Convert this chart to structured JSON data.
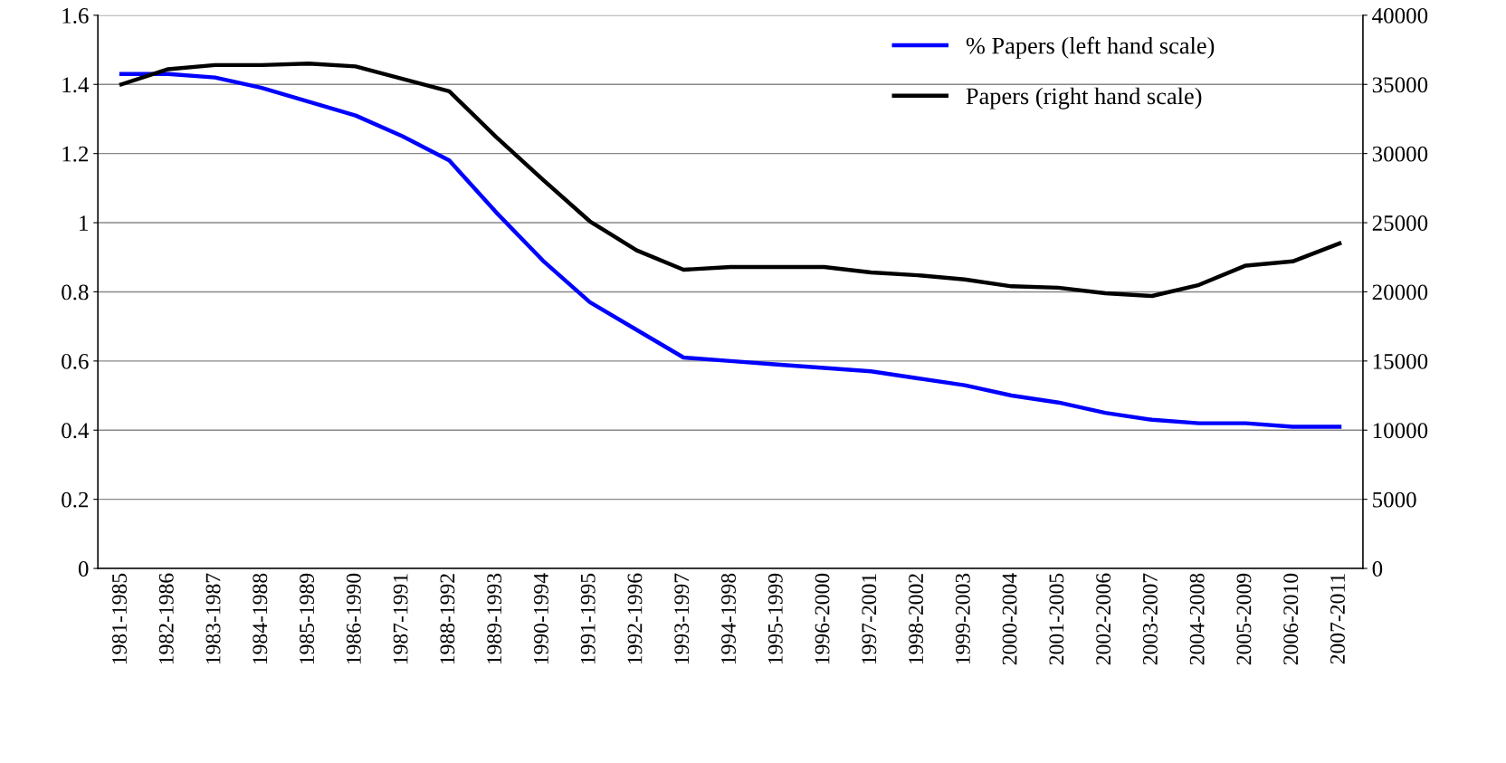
{
  "chart_data": {
    "type": "line",
    "categories": [
      "1981-1985",
      "1982-1986",
      "1983-1987",
      "1984-1988",
      "1985-1989",
      "1986-1990",
      "1987-1991",
      "1988-1992",
      "1989-1993",
      "1990-1994",
      "1991-1995",
      "1992-1996",
      "1993-1997",
      "1994-1998",
      "1995-1999",
      "1996-2000",
      "1997-2001",
      "1998-2002",
      "1999-2003",
      "2000-2004",
      "2001-2005",
      "2002-2006",
      "2003-2007",
      "2004-2008",
      "2005-2009",
      "2006-2010",
      "2007-2011"
    ],
    "series": [
      {
        "name": "% Papers (left hand scale)",
        "color": "#0000ff",
        "values": [
          1.43,
          1.43,
          1.42,
          1.39,
          1.35,
          1.31,
          1.25,
          1.18,
          1.03,
          0.89,
          0.77,
          0.69,
          0.61,
          0.6,
          0.59,
          0.58,
          0.57,
          0.55,
          0.53,
          0.5,
          0.48,
          0.45,
          0.43,
          0.42,
          0.42,
          0.41,
          0.41
        ]
      },
      {
        "name": "Papers (right hand scale)",
        "color": "#000000",
        "axis": "y2",
        "values": [
          35000,
          36100,
          36400,
          36400,
          36500,
          36300,
          35400,
          34500,
          31200,
          28100,
          25100,
          23000,
          21600,
          21800,
          21800,
          21800,
          21400,
          21200,
          20900,
          20400,
          20300,
          19900,
          19700,
          20500,
          21900,
          22200,
          23500
        ]
      }
    ],
    "ylim": [
      0,
      1.6
    ],
    "yticks": [
      0,
      0.2,
      0.4,
      0.6,
      0.8,
      1,
      1.2,
      1.4,
      1.6
    ],
    "y2lim": [
      0,
      40000
    ],
    "y2ticks": [
      0,
      5000,
      10000,
      15000,
      20000,
      25000,
      30000,
      35000,
      40000
    ],
    "grid": "y",
    "legend": "top right",
    "marker": "none",
    "line_style": "solid"
  }
}
